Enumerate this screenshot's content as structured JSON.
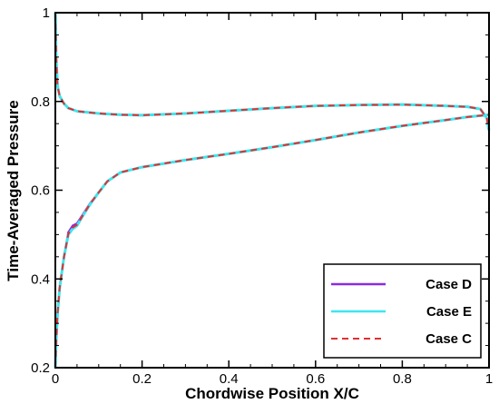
{
  "chart_data": {
    "type": "line",
    "title": "",
    "xlabel": "Chordwise Position X/C",
    "ylabel": "Time-Averaged Pressure",
    "xlim": [
      0,
      1
    ],
    "ylim": [
      0.2,
      1.0
    ],
    "x_ticks": [
      "0",
      "0.2",
      "0.4",
      "0.6",
      "0.8",
      "1"
    ],
    "y_ticks": [
      "0.2",
      "0.4",
      "0.6",
      "0.8",
      "1"
    ],
    "grid": false,
    "legend_position": "bottom-right",
    "series": [
      {
        "name": "Case D",
        "color": "#8b2be2",
        "dash": "solid",
        "upper": [
          [
            0.0,
            1.0
          ],
          [
            0.002,
            0.9
          ],
          [
            0.005,
            0.835
          ],
          [
            0.01,
            0.812
          ],
          [
            0.02,
            0.795
          ],
          [
            0.03,
            0.785
          ],
          [
            0.05,
            0.778
          ],
          [
            0.1,
            0.773
          ],
          [
            0.15,
            0.77
          ],
          [
            0.2,
            0.769
          ],
          [
            0.3,
            0.773
          ],
          [
            0.4,
            0.779
          ],
          [
            0.5,
            0.785
          ],
          [
            0.6,
            0.79
          ],
          [
            0.7,
            0.792
          ],
          [
            0.8,
            0.793
          ],
          [
            0.9,
            0.79
          ],
          [
            0.95,
            0.788
          ],
          [
            0.98,
            0.783
          ],
          [
            0.995,
            0.762
          ],
          [
            1.0,
            0.735
          ]
        ],
        "lower": [
          [
            0.0,
            0.2
          ],
          [
            0.002,
            0.26
          ],
          [
            0.005,
            0.32
          ],
          [
            0.01,
            0.38
          ],
          [
            0.02,
            0.45
          ],
          [
            0.03,
            0.505
          ],
          [
            0.04,
            0.52
          ],
          [
            0.05,
            0.525
          ],
          [
            0.06,
            0.54
          ],
          [
            0.08,
            0.57
          ],
          [
            0.1,
            0.595
          ],
          [
            0.12,
            0.62
          ],
          [
            0.15,
            0.64
          ],
          [
            0.2,
            0.652
          ],
          [
            0.3,
            0.668
          ],
          [
            0.4,
            0.682
          ],
          [
            0.5,
            0.697
          ],
          [
            0.6,
            0.713
          ],
          [
            0.7,
            0.73
          ],
          [
            0.8,
            0.745
          ],
          [
            0.9,
            0.758
          ],
          [
            0.95,
            0.765
          ],
          [
            0.98,
            0.768
          ],
          [
            1.0,
            0.77
          ]
        ]
      },
      {
        "name": "Case E",
        "color": "#3ee6ee",
        "dash": "solid",
        "upper": [
          [
            0.0,
            1.0
          ],
          [
            0.002,
            0.9
          ],
          [
            0.005,
            0.835
          ],
          [
            0.01,
            0.812
          ],
          [
            0.02,
            0.795
          ],
          [
            0.03,
            0.785
          ],
          [
            0.05,
            0.778
          ],
          [
            0.1,
            0.773
          ],
          [
            0.15,
            0.77
          ],
          [
            0.2,
            0.769
          ],
          [
            0.3,
            0.773
          ],
          [
            0.4,
            0.779
          ],
          [
            0.5,
            0.785
          ],
          [
            0.6,
            0.79
          ],
          [
            0.7,
            0.792
          ],
          [
            0.8,
            0.793
          ],
          [
            0.9,
            0.79
          ],
          [
            0.95,
            0.788
          ],
          [
            0.98,
            0.783
          ],
          [
            0.995,
            0.762
          ],
          [
            1.0,
            0.735
          ]
        ],
        "lower": [
          [
            0.0,
            0.2
          ],
          [
            0.002,
            0.26
          ],
          [
            0.005,
            0.32
          ],
          [
            0.01,
            0.38
          ],
          [
            0.02,
            0.45
          ],
          [
            0.03,
            0.5
          ],
          [
            0.04,
            0.513
          ],
          [
            0.05,
            0.52
          ],
          [
            0.06,
            0.537
          ],
          [
            0.08,
            0.568
          ],
          [
            0.1,
            0.595
          ],
          [
            0.12,
            0.62
          ],
          [
            0.15,
            0.64
          ],
          [
            0.2,
            0.652
          ],
          [
            0.3,
            0.668
          ],
          [
            0.4,
            0.682
          ],
          [
            0.5,
            0.697
          ],
          [
            0.6,
            0.713
          ],
          [
            0.7,
            0.73
          ],
          [
            0.8,
            0.745
          ],
          [
            0.9,
            0.758
          ],
          [
            0.95,
            0.765
          ],
          [
            0.98,
            0.768
          ],
          [
            1.0,
            0.77
          ]
        ]
      },
      {
        "name": "Case C",
        "color": "#e03030",
        "dash": "dashed",
        "upper": [
          [
            0.0,
            1.0
          ],
          [
            0.002,
            0.9
          ],
          [
            0.005,
            0.835
          ],
          [
            0.01,
            0.812
          ],
          [
            0.02,
            0.795
          ],
          [
            0.03,
            0.785
          ],
          [
            0.05,
            0.778
          ],
          [
            0.1,
            0.773
          ],
          [
            0.15,
            0.77
          ],
          [
            0.2,
            0.769
          ],
          [
            0.3,
            0.773
          ],
          [
            0.4,
            0.779
          ],
          [
            0.5,
            0.785
          ],
          [
            0.6,
            0.79
          ],
          [
            0.7,
            0.792
          ],
          [
            0.8,
            0.793
          ],
          [
            0.9,
            0.79
          ],
          [
            0.95,
            0.788
          ],
          [
            0.98,
            0.783
          ],
          [
            0.995,
            0.762
          ],
          [
            1.0,
            0.735
          ]
        ],
        "lower": [
          [
            0.0,
            0.2
          ],
          [
            0.002,
            0.26
          ],
          [
            0.005,
            0.32
          ],
          [
            0.01,
            0.38
          ],
          [
            0.02,
            0.45
          ],
          [
            0.03,
            0.502
          ],
          [
            0.04,
            0.516
          ],
          [
            0.05,
            0.522
          ],
          [
            0.06,
            0.538
          ],
          [
            0.08,
            0.569
          ],
          [
            0.1,
            0.595
          ],
          [
            0.12,
            0.62
          ],
          [
            0.15,
            0.64
          ],
          [
            0.2,
            0.652
          ],
          [
            0.3,
            0.668
          ],
          [
            0.4,
            0.682
          ],
          [
            0.5,
            0.697
          ],
          [
            0.6,
            0.713
          ],
          [
            0.7,
            0.73
          ],
          [
            0.8,
            0.745
          ],
          [
            0.9,
            0.758
          ],
          [
            0.95,
            0.765
          ],
          [
            0.98,
            0.768
          ],
          [
            1.0,
            0.77
          ]
        ]
      }
    ]
  }
}
